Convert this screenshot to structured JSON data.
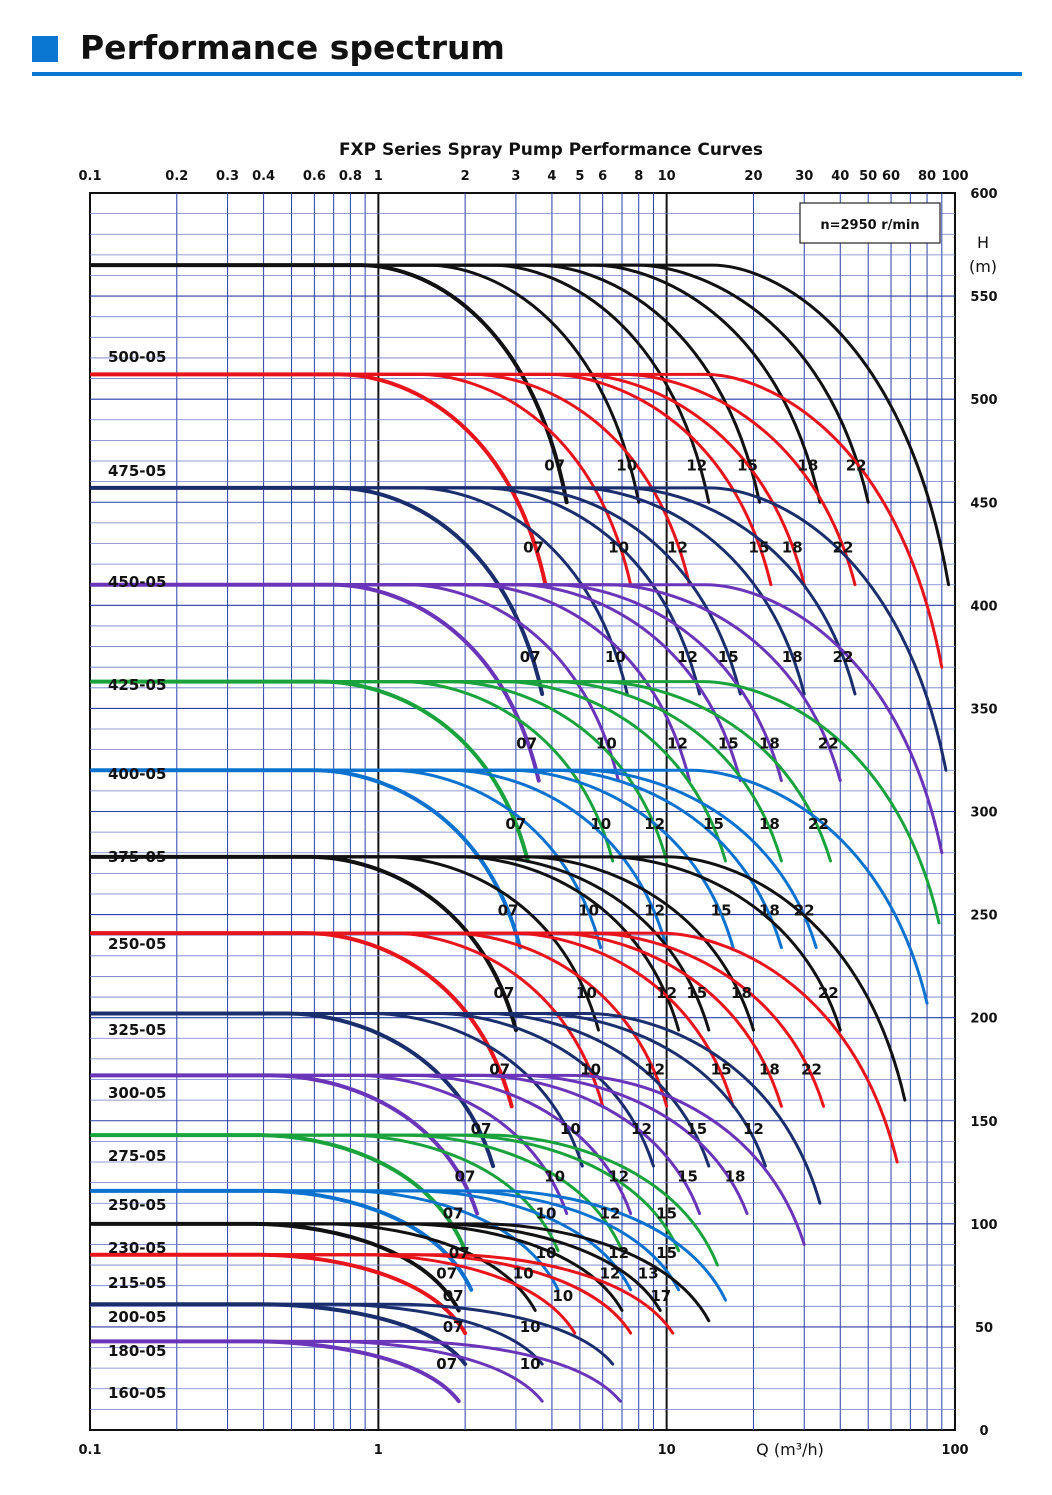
{
  "header": {
    "title": "Performance spectrum",
    "accent": "#0a78d2"
  },
  "chart_data": {
    "type": "line",
    "title": "FXP Series Spray Pump Performance Curves",
    "speed_note": "n=2950 r/min",
    "xlabel": "Q (m³/h)",
    "ylabel_lines": [
      "H",
      "(m)"
    ],
    "x_scale": "log",
    "xlim": [
      0.1,
      100
    ],
    "ylim": [
      0,
      600
    ],
    "top_ticks": [
      "0.1",
      "0.2",
      "0.3",
      "0.4",
      "0.6",
      "0.8",
      "1",
      "2",
      "3",
      "4",
      "5",
      "6",
      "8",
      "10",
      "20",
      "30",
      "40",
      "50",
      "60",
      "80",
      "100"
    ],
    "bottom_ticks": [
      "0.1",
      "1",
      "10",
      "100"
    ],
    "right_ticks": [
      "600",
      "550",
      "500",
      "450",
      "400",
      "350",
      "300",
      "250",
      "200",
      "150",
      "100",
      "50",
      "0"
    ],
    "grid": true,
    "legend": "none",
    "series": [
      {
        "name": "500-05",
        "color": "#111111",
        "shutoff_head": 565,
        "impellers": [
          {
            "label": "07",
            "end_q": 4.5,
            "end_h": 450
          },
          {
            "label": "10",
            "end_q": 8,
            "end_h": 450
          },
          {
            "label": "12",
            "end_q": 14,
            "end_h": 450
          },
          {
            "label": "15",
            "end_q": 21,
            "end_h": 450
          },
          {
            "label": "18",
            "end_q": 34,
            "end_h": 450
          },
          {
            "label": "22",
            "end_q": 50,
            "end_h": 450
          },
          {
            "label": "",
            "end_q": 95,
            "end_h": 410
          }
        ]
      },
      {
        "name": "475-05",
        "color": "#e8141b",
        "shutoff_head": 512,
        "impellers": [
          {
            "label": "07",
            "end_q": 3.8,
            "end_h": 410
          },
          {
            "label": "10",
            "end_q": 7.5,
            "end_h": 410
          },
          {
            "label": "12",
            "end_q": 12,
            "end_h": 410
          },
          {
            "label": "15",
            "end_q": 23,
            "end_h": 410
          },
          {
            "label": "18",
            "end_q": 30,
            "end_h": 410
          },
          {
            "label": "22",
            "end_q": 45,
            "end_h": 410
          },
          {
            "label": "",
            "end_q": 90,
            "end_h": 370
          }
        ]
      },
      {
        "name": "450-05",
        "color": "#1a2e6e",
        "shutoff_head": 457,
        "impellers": [
          {
            "label": "07",
            "end_q": 3.7,
            "end_h": 357
          },
          {
            "label": "10",
            "end_q": 7.3,
            "end_h": 357
          },
          {
            "label": "12",
            "end_q": 13,
            "end_h": 357
          },
          {
            "label": "15",
            "end_q": 18,
            "end_h": 357
          },
          {
            "label": "18",
            "end_q": 30,
            "end_h": 357
          },
          {
            "label": "22",
            "end_q": 45,
            "end_h": 357
          },
          {
            "label": "",
            "end_q": 93,
            "end_h": 320
          }
        ]
      },
      {
        "name": "425-05",
        "color": "#6a35b8",
        "shutoff_head": 410,
        "impellers": [
          {
            "label": "07",
            "end_q": 3.6,
            "end_h": 315
          },
          {
            "label": "10",
            "end_q": 6.8,
            "end_h": 315
          },
          {
            "label": "12",
            "end_q": 12,
            "end_h": 315
          },
          {
            "label": "15",
            "end_q": 18,
            "end_h": 315
          },
          {
            "label": "18",
            "end_q": 25,
            "end_h": 315
          },
          {
            "label": "22",
            "end_q": 40,
            "end_h": 315
          },
          {
            "label": "",
            "end_q": 90,
            "end_h": 280
          }
        ]
      },
      {
        "name": "400-05",
        "color": "#1aa33c",
        "shutoff_head": 363,
        "impellers": [
          {
            "label": "07",
            "end_q": 3.3,
            "end_h": 276
          },
          {
            "label": "10",
            "end_q": 6.5,
            "end_h": 276
          },
          {
            "label": "12",
            "end_q": 10,
            "end_h": 276
          },
          {
            "label": "15",
            "end_q": 16,
            "end_h": 276
          },
          {
            "label": "18",
            "end_q": 25,
            "end_h": 276
          },
          {
            "label": "22",
            "end_q": 37,
            "end_h": 276
          },
          {
            "label": "",
            "end_q": 88,
            "end_h": 246
          }
        ]
      },
      {
        "name": "375-05",
        "color": "#0b72cf",
        "shutoff_head": 320,
        "impellers": [
          {
            "label": "07",
            "end_q": 3.1,
            "end_h": 234
          },
          {
            "label": "10",
            "end_q": 5.9,
            "end_h": 234
          },
          {
            "label": "12",
            "end_q": 10,
            "end_h": 234
          },
          {
            "label": "15",
            "end_q": 17,
            "end_h": 234
          },
          {
            "label": "18",
            "end_q": 25,
            "end_h": 234
          },
          {
            "label": "22",
            "end_q": 33,
            "end_h": 234
          },
          {
            "label": "",
            "end_q": 80,
            "end_h": 207
          }
        ]
      },
      {
        "name": "250-05",
        "color": "#111111",
        "shutoff_head": 278,
        "impellers": [
          {
            "label": "07",
            "end_q": 3.0,
            "end_h": 194
          },
          {
            "label": "10",
            "end_q": 5.8,
            "end_h": 194
          },
          {
            "label": "12",
            "end_q": 11,
            "end_h": 194
          },
          {
            "label": "15",
            "end_q": 14,
            "end_h": 194
          },
          {
            "label": "18",
            "end_q": 20,
            "end_h": 194
          },
          {
            "label": "22",
            "end_q": 40,
            "end_h": 194
          },
          {
            "label": "",
            "end_q": 67,
            "end_h": 160
          }
        ]
      },
      {
        "name": "325-05",
        "color": "#e8141b",
        "shutoff_head": 241,
        "impellers": [
          {
            "label": "07",
            "end_q": 2.9,
            "end_h": 157
          },
          {
            "label": "10",
            "end_q": 6.0,
            "end_h": 157
          },
          {
            "label": "12",
            "end_q": 10,
            "end_h": 157
          },
          {
            "label": "15",
            "end_q": 17,
            "end_h": 157
          },
          {
            "label": "18",
            "end_q": 25,
            "end_h": 157
          },
          {
            "label": "22",
            "end_q": 35,
            "end_h": 157
          },
          {
            "label": "",
            "end_q": 63,
            "end_h": 130
          }
        ]
      },
      {
        "name": "300-05",
        "color": "#1a2e6e",
        "shutoff_head": 202,
        "impellers": [
          {
            "label": "07",
            "end_q": 2.5,
            "end_h": 128
          },
          {
            "label": "10",
            "end_q": 5.1,
            "end_h": 128
          },
          {
            "label": "12",
            "end_q": 9,
            "end_h": 128
          },
          {
            "label": "15",
            "end_q": 14,
            "end_h": 128
          },
          {
            "label": "12",
            "end_q": 22,
            "end_h": 128
          },
          {
            "label": "",
            "end_q": 34,
            "end_h": 110
          }
        ]
      },
      {
        "name": "275-05",
        "color": "#6a35b8",
        "shutoff_head": 172,
        "impellers": [
          {
            "label": "07",
            "end_q": 2.2,
            "end_h": 105
          },
          {
            "label": "10",
            "end_q": 4.5,
            "end_h": 105
          },
          {
            "label": "12",
            "end_q": 7.5,
            "end_h": 105
          },
          {
            "label": "15",
            "end_q": 13,
            "end_h": 105
          },
          {
            "label": "18",
            "end_q": 19,
            "end_h": 105
          },
          {
            "label": "",
            "end_q": 30,
            "end_h": 90
          }
        ]
      },
      {
        "name": "250-05",
        "color": "#1aa33c",
        "shutoff_head": 143,
        "impellers": [
          {
            "label": "07",
            "end_q": 2.0,
            "end_h": 87
          },
          {
            "label": "10",
            "end_q": 4.2,
            "end_h": 87
          },
          {
            "label": "12",
            "end_q": 7.0,
            "end_h": 87
          },
          {
            "label": "15",
            "end_q": 11,
            "end_h": 87
          },
          {
            "label": "",
            "end_q": 15,
            "end_h": 80
          }
        ]
      },
      {
        "name": "230-05",
        "color": "#0b72cf",
        "shutoff_head": 116,
        "impellers": [
          {
            "label": "07",
            "end_q": 2.1,
            "end_h": 68
          },
          {
            "label": "10",
            "end_q": 4.2,
            "end_h": 68
          },
          {
            "label": "12",
            "end_q": 7.5,
            "end_h": 68
          },
          {
            "label": "15",
            "end_q": 11,
            "end_h": 68
          },
          {
            "label": "",
            "end_q": 16,
            "end_h": 63
          }
        ]
      },
      {
        "name": "215-05",
        "color": "#111111",
        "shutoff_head": 100,
        "impellers": [
          {
            "label": "07",
            "end_q": 1.9,
            "end_h": 58
          },
          {
            "label": "10",
            "end_q": 3.5,
            "end_h": 58
          },
          {
            "label": "12",
            "end_q": 7.0,
            "end_h": 58
          },
          {
            "label": "13",
            "end_q": 9.5,
            "end_h": 58
          },
          {
            "label": "",
            "end_q": 14,
            "end_h": 53
          }
        ]
      },
      {
        "name": "200-05",
        "color": "#e8141b",
        "shutoff_head": 85,
        "impellers": [
          {
            "label": "07",
            "end_q": 2.0,
            "end_h": 47
          },
          {
            "label": "10",
            "end_q": 4.8,
            "end_h": 47
          },
          {
            "label": "",
            "end_q": 7.5,
            "end_h": 47
          },
          {
            "label": "17",
            "end_q": 10.5,
            "end_h": 47
          }
        ]
      },
      {
        "name": "180-05",
        "color": "#1a2e6e",
        "shutoff_head": 61,
        "impellers": [
          {
            "label": "07",
            "end_q": 2.0,
            "end_h": 32
          },
          {
            "label": "10",
            "end_q": 3.7,
            "end_h": 32
          },
          {
            "label": "",
            "end_q": 6.5,
            "end_h": 32
          }
        ]
      },
      {
        "name": "160-05",
        "color": "#6a35b8",
        "shutoff_head": 43,
        "impellers": [
          {
            "label": "07",
            "end_q": 1.9,
            "end_h": 14
          },
          {
            "label": "10",
            "end_q": 3.7,
            "end_h": 14
          },
          {
            "label": "",
            "end_q": 6.9,
            "end_h": 14
          }
        ]
      }
    ]
  }
}
